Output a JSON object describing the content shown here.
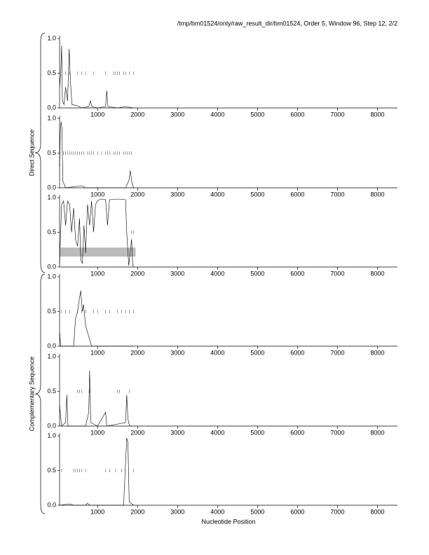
{
  "title": "/tmp/bm01524/only/raw_result_dir/bm01524, Order 5, Window 96, Step 12, 2/2",
  "labels": {
    "direct": "Direct Sequence",
    "complementary": "Complementary Sequence",
    "xlabel": "Nucleotide Position"
  },
  "chart_data": [
    {
      "type": "line",
      "xlim": [
        50,
        8500
      ],
      "ylim": [
        0,
        1
      ],
      "xticks": [
        1000,
        2000,
        3000,
        4000,
        5000,
        6000,
        7000,
        8000
      ],
      "yticks": [
        {
          "value": 0,
          "label": "0.0"
        },
        {
          "value": 0.5,
          "label": "0.5"
        },
        {
          "value": 1,
          "label": "1.0"
        }
      ],
      "x": [
        50,
        80,
        100,
        120,
        160,
        200,
        250,
        290,
        320,
        360,
        500,
        600,
        780,
        820,
        860,
        1000,
        1200,
        1230,
        1260,
        1500,
        1700,
        1900
      ],
      "values": [
        0.3,
        0.5,
        0.9,
        0.1,
        0.05,
        0.3,
        0.1,
        0.85,
        0.4,
        0.05,
        0.03,
        0,
        0.02,
        0.1,
        0.02,
        0,
        0.02,
        0.25,
        0.02,
        0,
        0.02,
        0
      ],
      "marker_level": 0.5,
      "marker_positions": [
        200,
        300,
        500,
        600,
        700,
        900,
        1200,
        1400,
        1450,
        1500,
        1550,
        1650,
        1700,
        1800,
        1900
      ]
    },
    {
      "type": "line",
      "xlim": [
        50,
        8500
      ],
      "ylim": [
        0,
        1
      ],
      "xticks": [
        1000,
        2000,
        3000,
        4000,
        5000,
        6000,
        7000,
        8000
      ],
      "yticks": [
        {
          "value": 0,
          "label": "0.0"
        },
        {
          "value": 0.5,
          "label": "0.5"
        },
        {
          "value": 1,
          "label": "1.0"
        }
      ],
      "x": [
        50,
        70,
        90,
        110,
        130,
        200,
        600,
        700,
        1700,
        1780,
        1820,
        1850,
        1900
      ],
      "values": [
        0.3,
        0.85,
        0.95,
        0.85,
        0.1,
        0,
        0.03,
        0,
        0,
        0.1,
        0.25,
        0.1,
        0
      ],
      "marker_level": 0.5,
      "marker_positions": [
        150,
        200,
        250,
        300,
        350,
        400,
        450,
        500,
        550,
        600,
        650,
        750,
        800,
        850,
        900,
        1000,
        1100,
        1200,
        1250,
        1300,
        1400,
        1450,
        1500,
        1550,
        1650,
        1700,
        1750,
        1800,
        1850
      ]
    },
    {
      "type": "line",
      "xlim": [
        50,
        8500
      ],
      "ylim": [
        0,
        1
      ],
      "xticks": [
        1000,
        2000,
        3000,
        4000,
        5000,
        6000,
        7000,
        8000
      ],
      "yticks": [
        {
          "value": 0,
          "label": "0.0"
        },
        {
          "value": 0.5,
          "label": "0.5"
        },
        {
          "value": 1,
          "label": "1.0"
        }
      ],
      "x": [
        50,
        100,
        150,
        200,
        250,
        300,
        350,
        400,
        450,
        500,
        550,
        580,
        620,
        660,
        700,
        750,
        800,
        850,
        900,
        950,
        1000,
        1100,
        1200,
        1250,
        1300,
        1500,
        1700,
        1730,
        1780,
        1850,
        1880,
        1900
      ],
      "values": [
        0.05,
        0.9,
        0.95,
        0.6,
        0.95,
        0.9,
        0.5,
        0.85,
        0.4,
        0.3,
        0.7,
        0.1,
        0.05,
        0.6,
        0.2,
        0.9,
        0.6,
        0.95,
        0.5,
        0.9,
        0.96,
        0.98,
        0.97,
        0.6,
        0.97,
        0.98,
        0.97,
        0.5,
        0.02,
        0.4,
        0.02,
        0
      ],
      "marker_level": 0.5,
      "marker_positions": [
        1850,
        1900
      ],
      "band": {
        "x": [
          50,
          1950
        ],
        "y": [
          0.15,
          0.28
        ]
      }
    },
    {
      "type": "line",
      "xlim": [
        50,
        8500
      ],
      "ylim": [
        0,
        1
      ],
      "xticks": [
        1000,
        2000,
        3000,
        4000,
        5000,
        6000,
        7000,
        8000
      ],
      "yticks": [
        {
          "value": 0,
          "label": "0.0"
        },
        {
          "value": 0.5,
          "label": "0.5"
        },
        {
          "value": 1,
          "label": "1.0"
        }
      ],
      "x": [
        50,
        80,
        400,
        450,
        500,
        550,
        580,
        620,
        650,
        700,
        750,
        850,
        1900
      ],
      "values": [
        0.2,
        0,
        0,
        0.4,
        0.5,
        0.7,
        0.8,
        0.5,
        0.6,
        0.3,
        0.2,
        0,
        0
      ],
      "marker_level": 0.5,
      "marker_positions": [
        100,
        200,
        300,
        500,
        600,
        700,
        900,
        1000,
        1200,
        1300,
        1500,
        1600,
        1700,
        1800,
        1900
      ]
    },
    {
      "type": "line",
      "xlim": [
        50,
        8500
      ],
      "ylim": [
        0,
        1
      ],
      "xticks": [
        1000,
        2000,
        3000,
        4000,
        5000,
        6000,
        7000,
        8000
      ],
      "yticks": [
        {
          "value": 0,
          "label": "0.0"
        },
        {
          "value": 0.5,
          "label": "0.5"
        },
        {
          "value": 1,
          "label": "1.0"
        }
      ],
      "x": [
        50,
        100,
        200,
        230,
        260,
        700,
        780,
        800,
        830,
        1000,
        1200,
        1230,
        1700,
        1730,
        1760,
        1800,
        1900
      ],
      "values": [
        0.3,
        0,
        0.05,
        0.45,
        0,
        0,
        0.2,
        0.8,
        0.05,
        0,
        0.2,
        0,
        0.05,
        0.45,
        0.1,
        0,
        0
      ],
      "marker_level": 0.5,
      "marker_positions": [
        500,
        550,
        600,
        800,
        1500,
        1550,
        1800
      ]
    },
    {
      "type": "line",
      "xlim": [
        50,
        8500
      ],
      "ylim": [
        0,
        1
      ],
      "xticks": [
        1000,
        2000,
        3000,
        4000,
        5000,
        6000,
        7000,
        8000
      ],
      "yticks": [
        {
          "value": 0,
          "label": "0.0"
        },
        {
          "value": 0.5,
          "label": "0.5"
        },
        {
          "value": 1,
          "label": "1.0"
        }
      ],
      "x": [
        50,
        300,
        400,
        700,
        750,
        800,
        1650,
        1700,
        1730,
        1760,
        1790,
        1900
      ],
      "values": [
        0,
        0.02,
        0,
        0,
        0.03,
        0,
        0,
        0.6,
        0.97,
        0.9,
        0.05,
        0
      ],
      "marker_level": 0.5,
      "marker_positions": [
        100,
        400,
        450,
        500,
        550,
        600,
        700,
        1200,
        1300,
        1450,
        1600,
        1900
      ]
    }
  ]
}
